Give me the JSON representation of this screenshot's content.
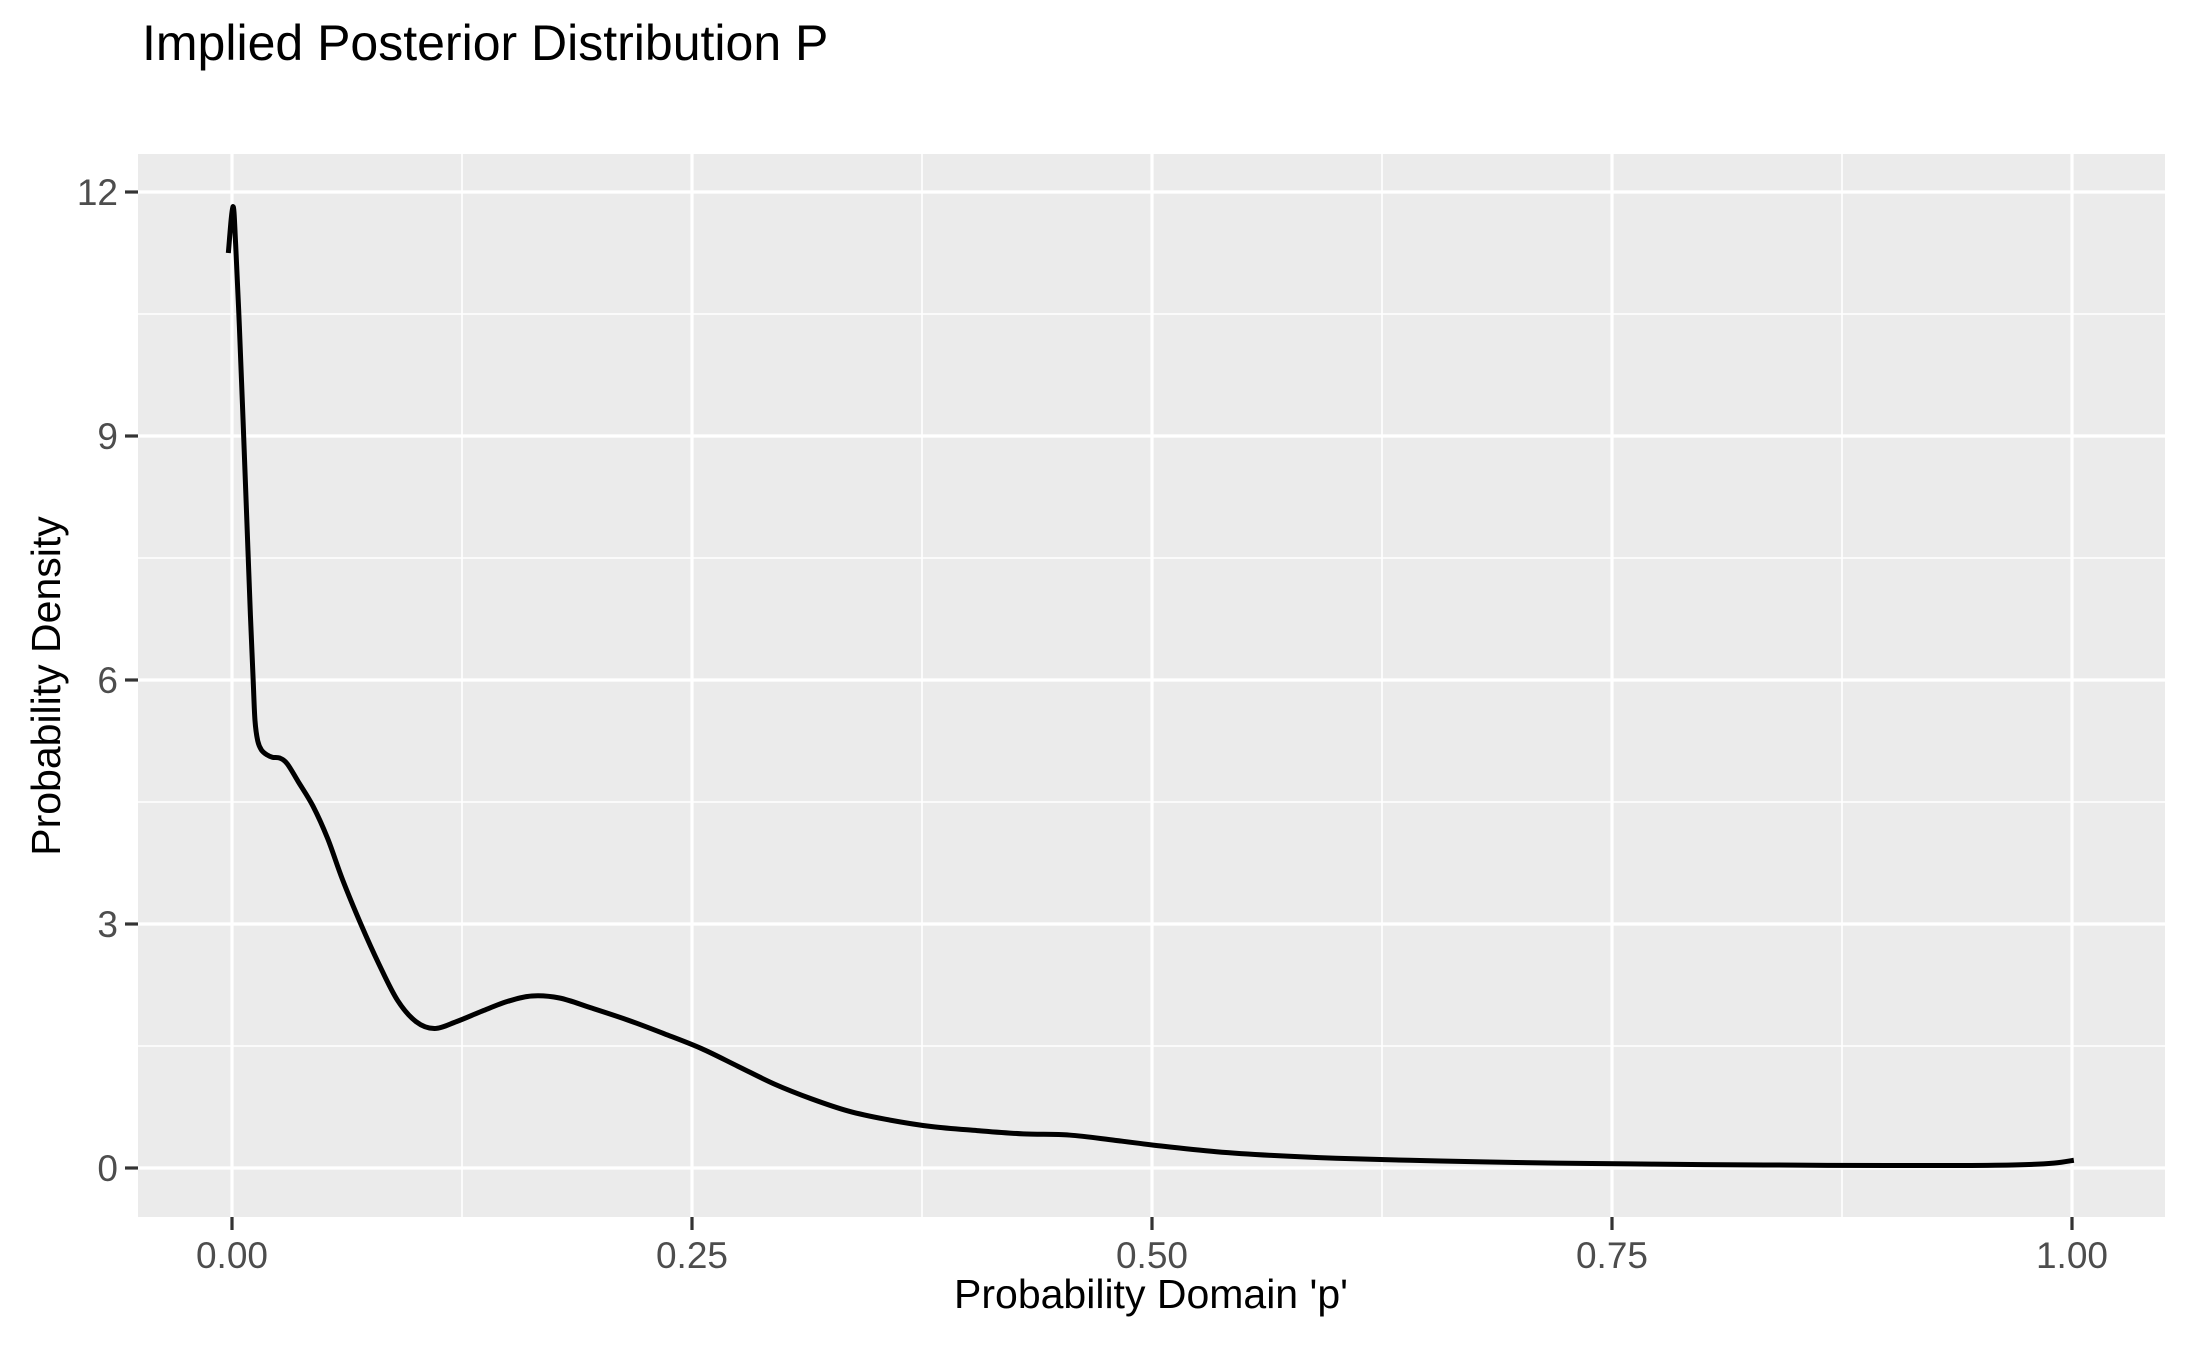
{
  "chart_data": {
    "type": "line",
    "title": "Implied Posterior Distribution P",
    "xlabel": "Probability Domain 'p'",
    "ylabel": "Probability Density",
    "xlim": [
      0,
      1
    ],
    "ylim": [
      0,
      12
    ],
    "grid": "on",
    "legend": "none",
    "x_ticks": {
      "values": [
        0,
        0.25,
        0.5,
        0.75,
        1.0
      ],
      "labels": [
        "0.00",
        "0.25",
        "0.50",
        "0.75",
        "1.00"
      ]
    },
    "y_ticks": {
      "values": [
        0,
        3,
        6,
        9,
        12
      ],
      "labels": [
        "0",
        "3",
        "6",
        "9",
        "12"
      ]
    },
    "x_minor_gridlines": [
      0.125,
      0.375,
      0.625,
      0.875
    ],
    "y_minor_gridlines": [
      1.5,
      4.5,
      7.5,
      10.5
    ],
    "series": [
      {
        "name": "posterior-density-curve",
        "x": [
          -0.002,
          0.0005,
          0.002,
          0.004,
          0.006,
          0.008,
          0.01,
          0.0115,
          0.0125,
          0.014,
          0.016,
          0.019,
          0.022,
          0.026,
          0.03,
          0.036,
          0.044,
          0.052,
          0.06,
          0.07,
          0.08,
          0.09,
          0.1,
          0.11,
          0.122,
          0.136,
          0.15,
          0.163,
          0.178,
          0.195,
          0.215,
          0.235,
          0.255,
          0.275,
          0.295,
          0.315,
          0.335,
          0.355,
          0.38,
          0.405,
          0.43,
          0.455,
          0.48,
          0.505,
          0.535,
          0.565,
          0.6,
          0.64,
          0.68,
          0.72,
          0.76,
          0.8,
          0.85,
          0.9,
          0.94,
          0.97,
          0.99,
          1.001
        ],
        "y": [
          11.25,
          11.82,
          11.35,
          10.35,
          9.2,
          8.0,
          6.8,
          6.0,
          5.5,
          5.25,
          5.14,
          5.08,
          5.05,
          5.04,
          4.97,
          4.75,
          4.45,
          4.05,
          3.55,
          3.0,
          2.5,
          2.06,
          1.8,
          1.715,
          1.8,
          1.93,
          2.05,
          2.115,
          2.09,
          1.97,
          1.82,
          1.65,
          1.47,
          1.25,
          1.03,
          0.85,
          0.7,
          0.6,
          0.51,
          0.46,
          0.42,
          0.405,
          0.34,
          0.27,
          0.2,
          0.155,
          0.12,
          0.095,
          0.075,
          0.06,
          0.05,
          0.042,
          0.035,
          0.03,
          0.03,
          0.038,
          0.06,
          0.095
        ]
      }
    ],
    "colors": {
      "panel_background": "#EBEBEB",
      "gridline": "#FFFFFF",
      "curve": "#000000",
      "tick_mark": "#333333",
      "tick_label": "#4D4D4D",
      "title_text": "#000000",
      "axis_title_text": "#000000",
      "page_background": "#FFFFFF"
    }
  }
}
